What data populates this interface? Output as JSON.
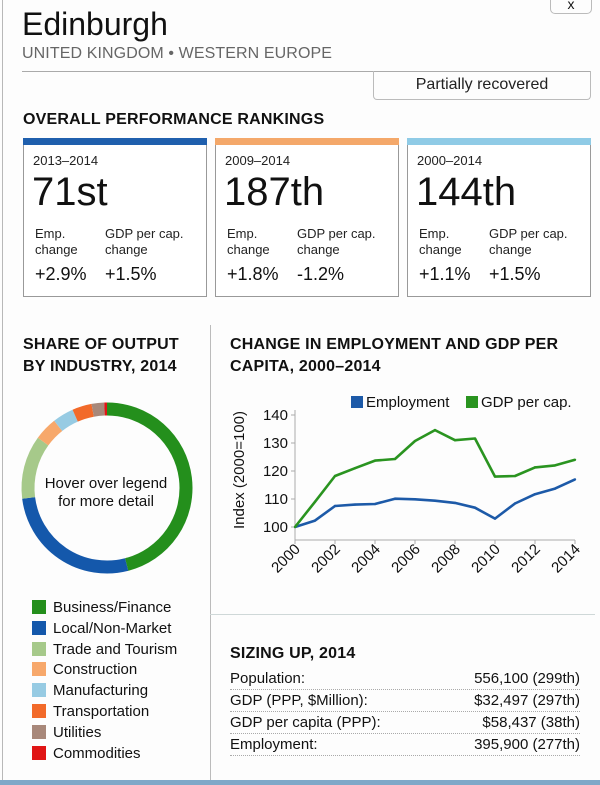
{
  "header": {
    "title": "Edinburgh",
    "subtitle": "UNITED KINGDOM • WESTERN EUROPE",
    "close_label": "x",
    "status_badge": "Partially recovered"
  },
  "rankings": {
    "heading": "OVERALL PERFORMANCE RANKINGS",
    "emp_label": [
      "Emp.",
      "change"
    ],
    "gdp_label": [
      "GDP per cap.",
      "change"
    ],
    "boxes": [
      {
        "period": "2013–2014",
        "rank": "71st",
        "emp_change": "+2.9%",
        "gdp_change": "+1.5%",
        "color": "#1f5fad"
      },
      {
        "period": "2009–2014",
        "rank": "187th",
        "emp_change": "+1.8%",
        "gdp_change": "-1.2%",
        "color": "#f4a86a"
      },
      {
        "period": "2000–2014",
        "rank": "144th",
        "emp_change": "+1.1%",
        "gdp_change": "+1.5%",
        "color": "#8fcbe6"
      }
    ]
  },
  "share": {
    "heading_line1": "SHARE OF OUTPUT",
    "heading_line2": "BY INDUSTRY, 2014",
    "center_line1": "Hover over legend",
    "center_line2": "for more detail",
    "segments": [
      {
        "label": "Business/Finance",
        "share": 46,
        "color": "#248f1c"
      },
      {
        "label": "Local/Non-Market",
        "share": 27,
        "color": "#1458ab"
      },
      {
        "label": "Trade and Tourism",
        "share": 12,
        "color": "#a6c98a"
      },
      {
        "label": "Construction",
        "share": 4.4,
        "color": "#f7a86b"
      },
      {
        "label": "Manufacturing",
        "share": 4,
        "color": "#97cbe3"
      },
      {
        "label": "Transportation",
        "share": 3.7,
        "color": "#f26a2a"
      },
      {
        "label": "Utilities",
        "share": 2.4,
        "color": "#a8887a"
      },
      {
        "label": "Commodities",
        "share": 0.5,
        "color": "#e01515"
      }
    ]
  },
  "chart_data": {
    "type": "line",
    "title": "CHANGE IN EMPLOYMENT AND GDP PER CAPITA, 2000–2014",
    "title_line1": "CHANGE IN EMPLOYMENT AND GDP PER",
    "title_line2": "CAPITA, 2000–2014",
    "xlabel": "",
    "ylabel": "Index (2000=100)",
    "x": [
      2000,
      2001,
      2002,
      2003,
      2004,
      2005,
      2006,
      2007,
      2008,
      2009,
      2010,
      2011,
      2012,
      2013,
      2014
    ],
    "xticks": [
      "2000",
      "2002",
      "2004",
      "2006",
      "2008",
      "2010",
      "2012",
      "2014"
    ],
    "yticks": [
      "100",
      "110",
      "120",
      "130",
      "140"
    ],
    "ylim": [
      95,
      140
    ],
    "grid": false,
    "legend_position": "top-right",
    "series": [
      {
        "name": "Employment",
        "color": "#1d5aa8",
        "values": [
          100,
          102.3,
          107.5,
          108,
          108.2,
          110.1,
          109.9,
          109.4,
          108.6,
          106.9,
          103,
          108.4,
          111.7,
          113.7,
          117
        ]
      },
      {
        "name": "GDP per cap.",
        "color": "#2a9420",
        "values": [
          100,
          109,
          118.2,
          121,
          123.7,
          124.3,
          130.7,
          134.6,
          131,
          131.6,
          118,
          118.2,
          121.3,
          122,
          124
        ]
      }
    ]
  },
  "sizing": {
    "heading": "SIZING UP, 2014",
    "rows": [
      {
        "label": "Population:",
        "value": "556,100 (299th)"
      },
      {
        "label": "GDP (PPP, $Million):",
        "value": "$32,497 (297th)"
      },
      {
        "label": "GDP per capita (PPP):",
        "value": "$58,437 (38th)"
      },
      {
        "label": "Employment:",
        "value": "395,900 (277th)"
      }
    ]
  }
}
